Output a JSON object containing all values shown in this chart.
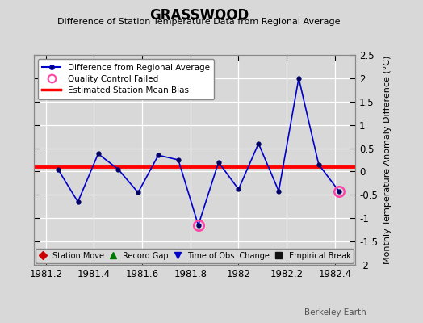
{
  "title": "GRASSWOOD",
  "subtitle": "Difference of Station Temperature Data from Regional Average",
  "ylabel": "Monthly Temperature Anomaly Difference (°C)",
  "watermark": "Berkeley Earth",
  "xlim": [
    1981.15,
    1982.485
  ],
  "ylim": [
    -2.0,
    2.5
  ],
  "yticks": [
    -2.0,
    -1.5,
    -1.0,
    -0.5,
    0.0,
    0.5,
    1.0,
    1.5,
    2.0,
    2.5
  ],
  "ytick_labels": [
    "-2",
    "-1.5",
    "-1",
    "-0.5",
    "0",
    "0.5",
    "1",
    "1.5",
    "2",
    "2.5"
  ],
  "xticks": [
    1981.2,
    1981.4,
    1981.6,
    1981.8,
    1982.0,
    1982.2,
    1982.4
  ],
  "xtick_labels": [
    "1981.2",
    "1981.4",
    "1981.6",
    "1981.8",
    "1982",
    "1982.2",
    "1982.4"
  ],
  "x_data": [
    1981.25,
    1981.333,
    1981.417,
    1981.5,
    1981.583,
    1981.667,
    1981.75,
    1981.833,
    1981.917,
    1982.0,
    1982.083,
    1982.167,
    1982.25,
    1982.333,
    1982.417
  ],
  "y_data": [
    0.05,
    -0.65,
    0.38,
    0.05,
    -0.45,
    0.35,
    0.25,
    -1.15,
    0.2,
    -0.38,
    0.6,
    -0.42,
    2.0,
    0.15,
    -0.42
  ],
  "qc_failed_indices": [
    7,
    14
  ],
  "bias_value": 0.12,
  "line_color": "#0000cc",
  "marker_color": "#000066",
  "qc_color": "#ff44aa",
  "bias_color": "red",
  "bg_color": "#d8d8d8",
  "plot_bg_color": "#d8d8d8",
  "grid_color": "#ffffff",
  "legend_main": [
    {
      "label": "Difference from Regional Average",
      "type": "line_marker"
    },
    {
      "label": "Quality Control Failed",
      "type": "open_circle"
    },
    {
      "label": "Estimated Station Mean Bias",
      "type": "red_line"
    }
  ],
  "legend_bottom": [
    {
      "label": "Station Move",
      "marker": "D",
      "color": "#cc0000"
    },
    {
      "label": "Record Gap",
      "marker": "^",
      "color": "#007700"
    },
    {
      "label": "Time of Obs. Change",
      "marker": "v",
      "color": "#0000cc"
    },
    {
      "label": "Empirical Break",
      "marker": "s",
      "color": "#111111"
    }
  ]
}
